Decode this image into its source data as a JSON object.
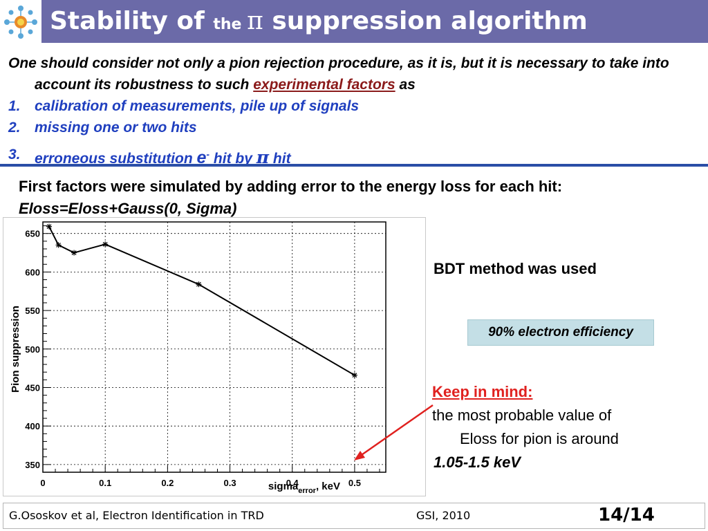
{
  "title": {
    "part1": "Stability of ",
    "part2": "the ",
    "pi": "π",
    "part3": " suppression algorithm"
  },
  "intro": {
    "line1": "One should consider not only a pion rejection procedure, as it is, but it is necessary to take into account its robustness to such ",
    "underlined": "experimental factors",
    "line_end": " as",
    "items": [
      {
        "num": "1.",
        "text": "calibration of measurements, pile up of signals"
      },
      {
        "num": "2.",
        "text": "missing one or two hits"
      }
    ],
    "item3": {
      "num": "3.",
      "pre": "erroneous substitution ",
      "e": "e",
      "sup": "-",
      "mid": " hit by ",
      "pi": "π",
      "post": " hit"
    }
  },
  "simulation": {
    "text": "First factors were simulated by adding error to the energy loss for each hit: ",
    "formula": "Eloss=Eloss+Gauss(0, Sigma)"
  },
  "right_panel": {
    "method": "BDT method was used",
    "efficiency": "90% electron efficiency",
    "keep_in_mind": "Keep in mind:",
    "note_line1": "the most probable value of",
    "note_line2": "Eloss for pion is around",
    "note_value": "1.05-1.5 keV"
  },
  "footer": {
    "left": "G.Ososkov et al, Electron Identification in TRD",
    "middle": "GSI, 2010",
    "page": "14/14"
  },
  "colors": {
    "title_bar": "#6b6aa8",
    "list_blue": "#1f3fbf",
    "divider": "#2b4ea7",
    "keep_red": "#e0211f",
    "efficiency_box": "#c4dfe6",
    "arrow": "#e0211f"
  },
  "chart_data": {
    "type": "line",
    "xlabel": "sigma",
    "xlabel_sub": "error",
    "xlabel_unit": ", keV",
    "ylabel": "Pion suppression",
    "xlim": [
      0,
      0.55
    ],
    "ylim": [
      340,
      665
    ],
    "x_ticks": [
      "0",
      "0.1",
      "0.2",
      "0.3",
      "0.4",
      "0.5"
    ],
    "x_tick_values": [
      0,
      0.1,
      0.2,
      0.3,
      0.4,
      0.5
    ],
    "y_ticks": [
      "350",
      "400",
      "450",
      "500",
      "550",
      "600",
      "650"
    ],
    "y_tick_values": [
      350,
      400,
      450,
      500,
      550,
      600,
      650
    ],
    "grid": true,
    "series": [
      {
        "x": [
          0.01,
          0.025,
          0.05,
          0.1,
          0.25,
          0.5
        ],
        "y": [
          659,
          635,
          625,
          636,
          584,
          466
        ]
      }
    ]
  }
}
